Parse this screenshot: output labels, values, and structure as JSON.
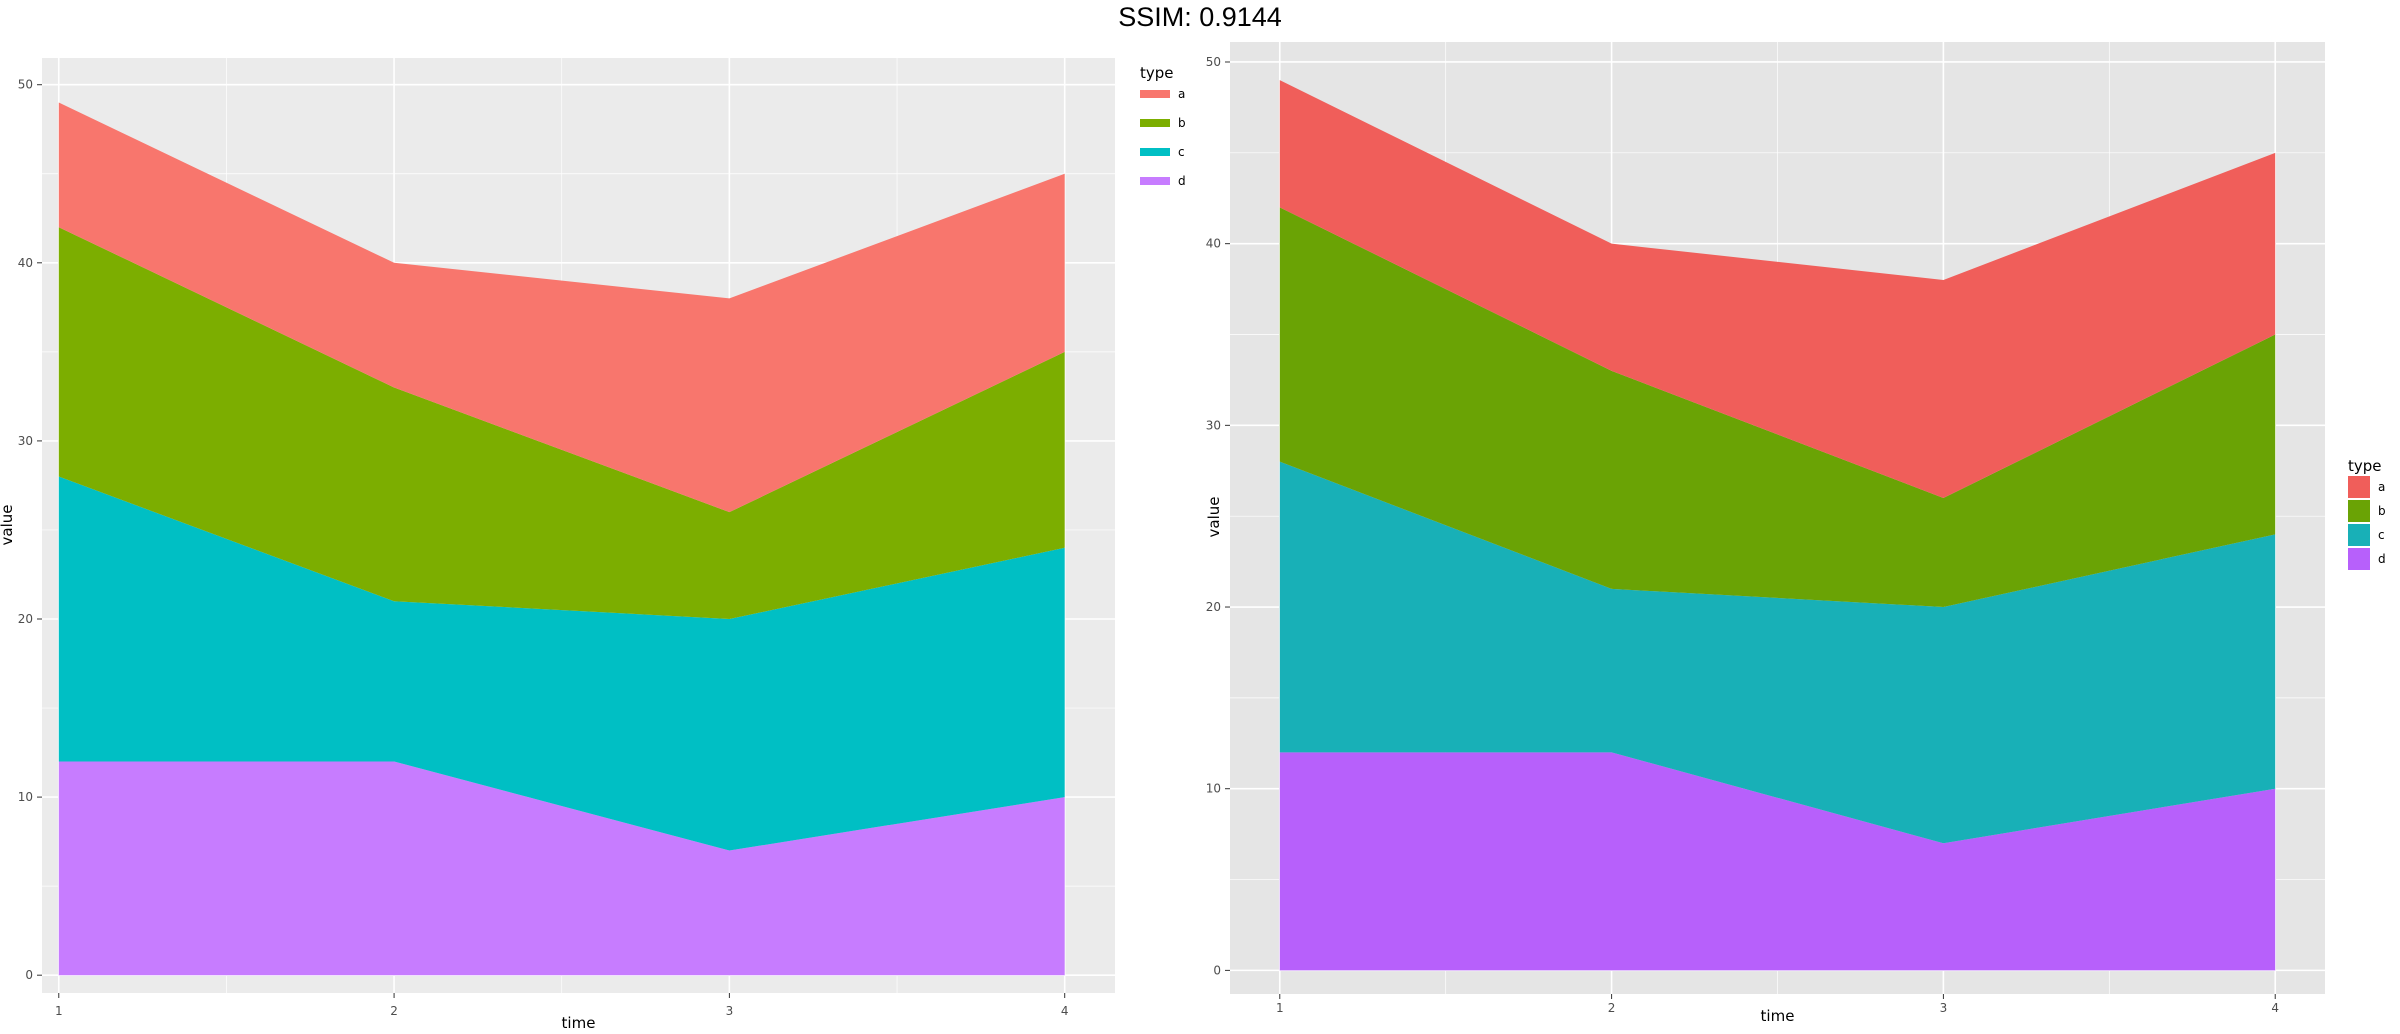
{
  "header": {
    "title": "SSIM: 0.9144"
  },
  "chart_data": [
    {
      "type": "area",
      "stacked": true,
      "title": "",
      "xlabel": "time",
      "ylabel": "value",
      "x": [
        1,
        2,
        3,
        4
      ],
      "xticks": [
        "1",
        "2",
        "3",
        "4"
      ],
      "yticks": [
        "0",
        "10",
        "20",
        "30",
        "40",
        "50"
      ],
      "xlim": [
        0.95,
        4.15
      ],
      "ylim": [
        -1,
        51.5
      ],
      "grid": true,
      "legend": {
        "title": "type",
        "position": "top-right",
        "key_style": "line"
      },
      "series": [
        {
          "name": "d",
          "values": [
            12,
            12,
            7,
            10
          ],
          "color": "#C77CFF"
        },
        {
          "name": "c",
          "values": [
            16,
            9,
            13,
            14
          ],
          "color": "#00BFC4"
        },
        {
          "name": "b",
          "values": [
            14,
            12,
            6,
            11
          ],
          "color": "#7CAE00"
        },
        {
          "name": "a",
          "values": [
            7,
            7,
            12,
            10
          ],
          "color": "#F8766D"
        }
      ],
      "panel_background": "#EBEBEB"
    },
    {
      "type": "area",
      "stacked": true,
      "title": "",
      "xlabel": "time",
      "ylabel": "value",
      "x": [
        1,
        2,
        3,
        4
      ],
      "xticks": [
        "1",
        "2",
        "3",
        "4"
      ],
      "yticks": [
        "0",
        "10",
        "20",
        "30",
        "40",
        "50"
      ],
      "xlim": [
        0.85,
        4.15
      ],
      "ylim": [
        -1.3,
        51.1
      ],
      "grid": true,
      "legend": {
        "title": "type",
        "position": "right",
        "key_style": "box"
      },
      "series": [
        {
          "name": "d",
          "values": [
            12,
            12,
            7,
            10
          ],
          "color": "#B760FB"
        },
        {
          "name": "c",
          "values": [
            16,
            9,
            13,
            14
          ],
          "color": "#18B0B7"
        },
        {
          "name": "b",
          "values": [
            14,
            12,
            6,
            11
          ],
          "color": "#6AA305"
        },
        {
          "name": "a",
          "values": [
            7,
            7,
            12,
            10
          ],
          "color": "#F05E5A"
        }
      ],
      "panel_background": "#E5E5E5"
    }
  ]
}
